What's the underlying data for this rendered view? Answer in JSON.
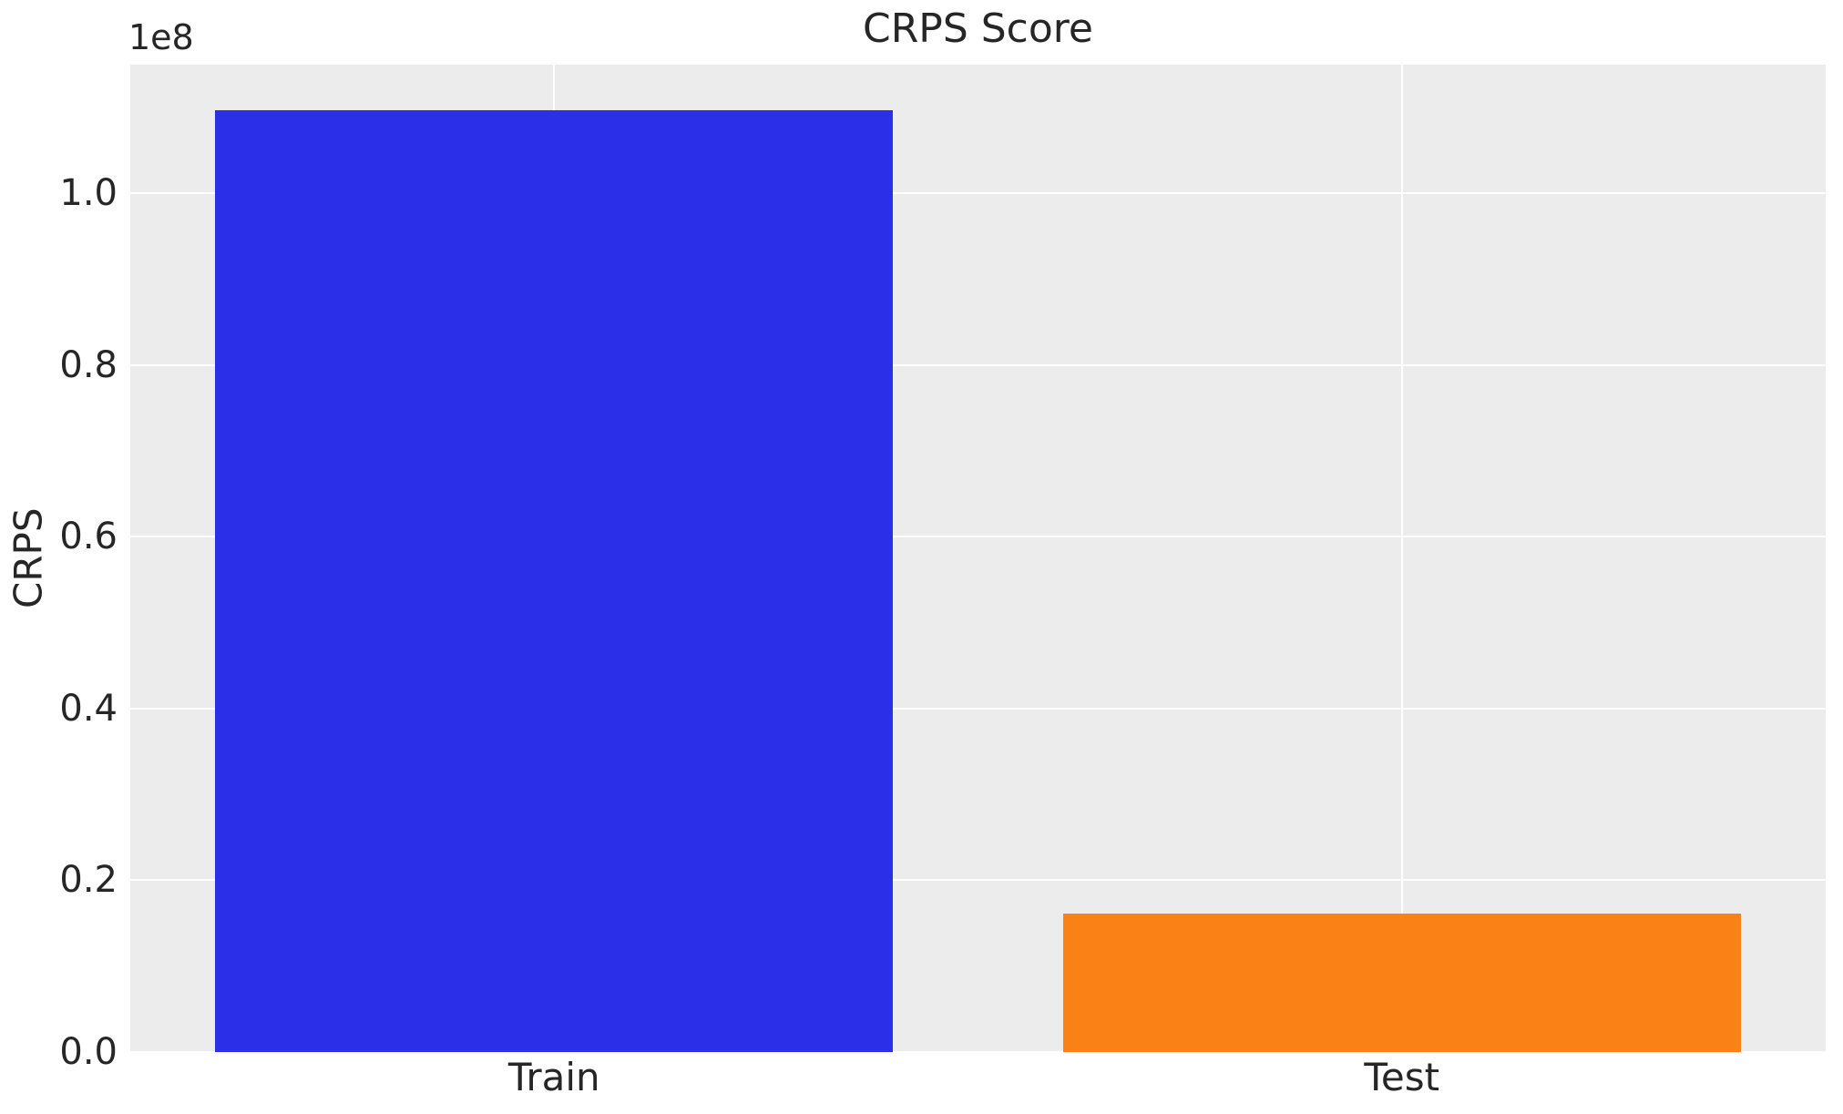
{
  "chart_data": {
    "type": "bar",
    "title": "CRPS Score",
    "xlabel": "",
    "ylabel": "CRPS",
    "offset_text": "1e8",
    "categories": [
      "Train",
      "Test"
    ],
    "values": [
      109700000,
      16100000
    ],
    "series": [
      {
        "name": "CRPS",
        "values": [
          109700000,
          16100000
        ]
      }
    ],
    "ylim": [
      0,
      115000000
    ],
    "yticks": [
      0,
      20000000,
      40000000,
      60000000,
      80000000,
      100000000
    ],
    "ytick_labels": [
      "0.0",
      "0.2",
      "0.4",
      "0.6",
      "0.8",
      "1.0"
    ],
    "xtick_labels": [
      "Train",
      "Test"
    ],
    "bar_colors": [
      "#2b2fe8",
      "#f98116"
    ],
    "bar_width_fraction": 0.4,
    "grid": true,
    "legend": false,
    "plot_background": "#ececec",
    "gridline_color": "#ffffff",
    "text_color": "#262626"
  }
}
